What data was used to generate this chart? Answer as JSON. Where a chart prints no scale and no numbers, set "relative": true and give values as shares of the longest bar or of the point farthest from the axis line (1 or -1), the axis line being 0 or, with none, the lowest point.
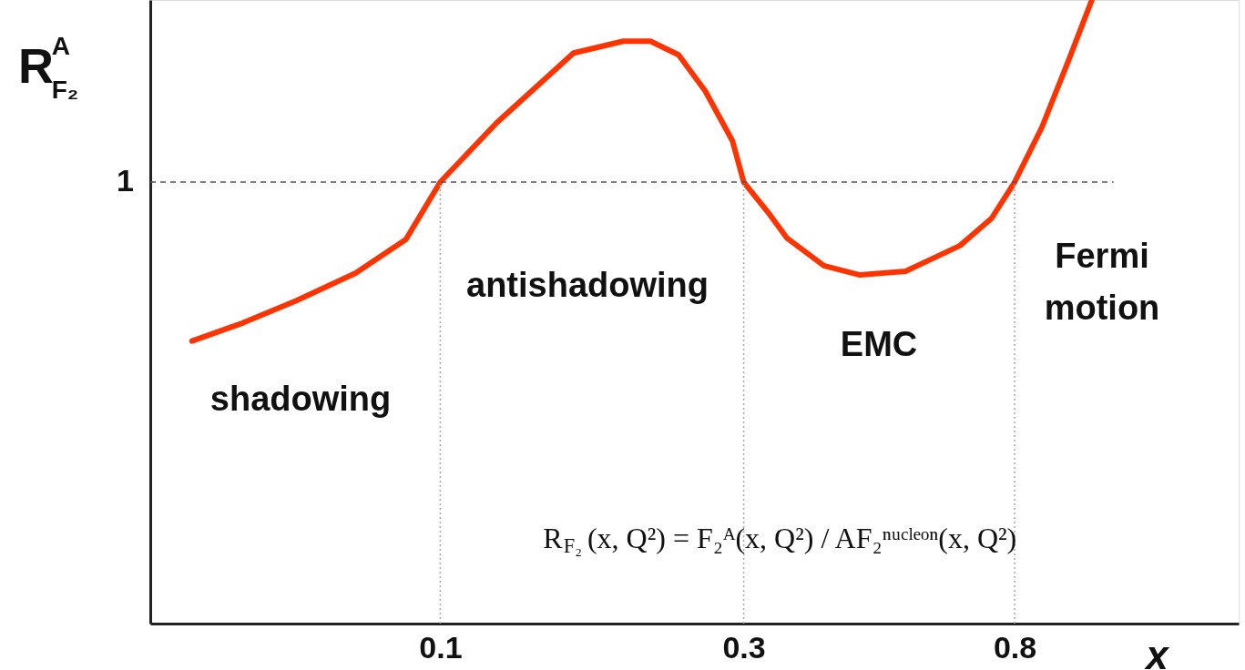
{
  "chart_data": {
    "type": "line",
    "relative": true,
    "log": "x",
    "ylabel": "R$^{A}$$_{F₂}$",
    "xlabel": "x",
    "xlim": [
      0.035,
      1.8
    ],
    "xticks": [
      0.1,
      0.3,
      0.8
    ],
    "grid": false,
    "marker": "none",
    "line_style": "solid",
    "tick_labels": "x",
    "series": [
      {
        "color": "#ff3300",
        "x": [
          0.0407,
          0.0489,
          0.0594,
          0.0736,
          0.0883,
          0.1,
          0.1226,
          0.162,
          0.194,
          0.214,
          0.237,
          0.261,
          0.288,
          0.3,
          0.329,
          0.351,
          0.401,
          0.457,
          0.539,
          0.656,
          0.736,
          0.8,
          0.883,
          0.974,
          1.058
        ],
        "values": [
          0.453,
          0.482,
          0.518,
          0.562,
          0.616,
          0.708,
          0.803,
          0.915,
          0.934,
          0.934,
          0.912,
          0.854,
          0.774,
          0.708,
          0.657,
          0.618,
          0.574,
          0.559,
          0.565,
          0.606,
          0.65,
          0.708,
          0.796,
          0.905,
          1
        ]
      }
    ],
    "ref_lines": [
      {
        "axis": "y",
        "value": 0.708,
        "label": "1",
        "line_style": "dashed",
        "color": "#555555"
      },
      {
        "axis": "x",
        "value": 0.1,
        "line_style": "dotted",
        "color": "#aaaaaa"
      },
      {
        "axis": "x",
        "value": 0.3,
        "line_style": "dotted",
        "color": "#aaaaaa"
      },
      {
        "axis": "x",
        "value": 0.8,
        "line_style": "dotted",
        "color": "#aaaaaa"
      }
    ],
    "annotations": [
      "shadowing",
      "antishadowing",
      "EMC",
      "Fermi\nmotion",
      "R$_{F₂}$(x, Q²) = F₂ᴬ(x, Q²) / AF₂ⁿᵘᶜˡᵉᵒⁿ(x, Q²)"
    ]
  }
}
